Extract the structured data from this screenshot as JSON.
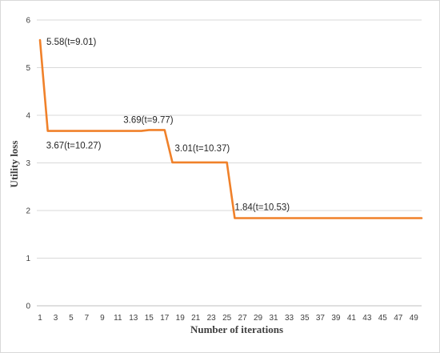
{
  "chart_data": {
    "type": "line",
    "xlabel": "Number of iterations",
    "ylabel": "Utility loss",
    "xlim": [
      1,
      50
    ],
    "ylim": [
      0,
      6
    ],
    "yticks": [
      0,
      1,
      2,
      3,
      4,
      5,
      6
    ],
    "xticks": [
      1,
      3,
      5,
      7,
      9,
      11,
      13,
      15,
      17,
      19,
      21,
      23,
      25,
      27,
      29,
      31,
      33,
      35,
      37,
      39,
      41,
      43,
      45,
      47,
      49
    ],
    "grid": "horizontal",
    "color": "#f0812a",
    "series": [
      {
        "x": [
          1,
          2,
          3,
          4,
          5,
          6,
          7,
          8,
          9,
          10,
          11,
          12,
          13,
          14,
          15,
          16,
          17,
          18,
          19,
          20,
          21,
          22,
          23,
          24,
          25,
          26,
          27,
          28,
          29,
          30,
          31,
          32,
          33,
          34,
          35,
          36,
          37,
          38,
          39,
          40,
          41,
          42,
          43,
          44,
          45,
          46,
          47,
          48,
          49,
          50
        ],
        "values": [
          5.58,
          3.67,
          3.67,
          3.67,
          3.67,
          3.67,
          3.67,
          3.67,
          3.67,
          3.67,
          3.67,
          3.67,
          3.67,
          3.67,
          3.69,
          3.69,
          3.69,
          3.01,
          3.01,
          3.01,
          3.01,
          3.01,
          3.01,
          3.01,
          3.01,
          1.84,
          1.84,
          1.84,
          1.84,
          1.84,
          1.84,
          1.84,
          1.84,
          1.84,
          1.84,
          1.84,
          1.84,
          1.84,
          1.84,
          1.84,
          1.84,
          1.84,
          1.84,
          1.84,
          1.84,
          1.84,
          1.84,
          1.84,
          1.84,
          1.84
        ]
      }
    ],
    "annotations": [
      {
        "text": "5.58(t=9.01)",
        "x": 1,
        "y": 5.58
      },
      {
        "text": "3.67(t=10.27)",
        "x": 2,
        "y": 3.67
      },
      {
        "text": "3.69(t=9.77)",
        "x": 15,
        "y": 3.69
      },
      {
        "text": "3.01(t=10.37)",
        "x": 18,
        "y": 3.01
      },
      {
        "text": "1.84(t=10.53)",
        "x": 26,
        "y": 1.84
      }
    ]
  }
}
